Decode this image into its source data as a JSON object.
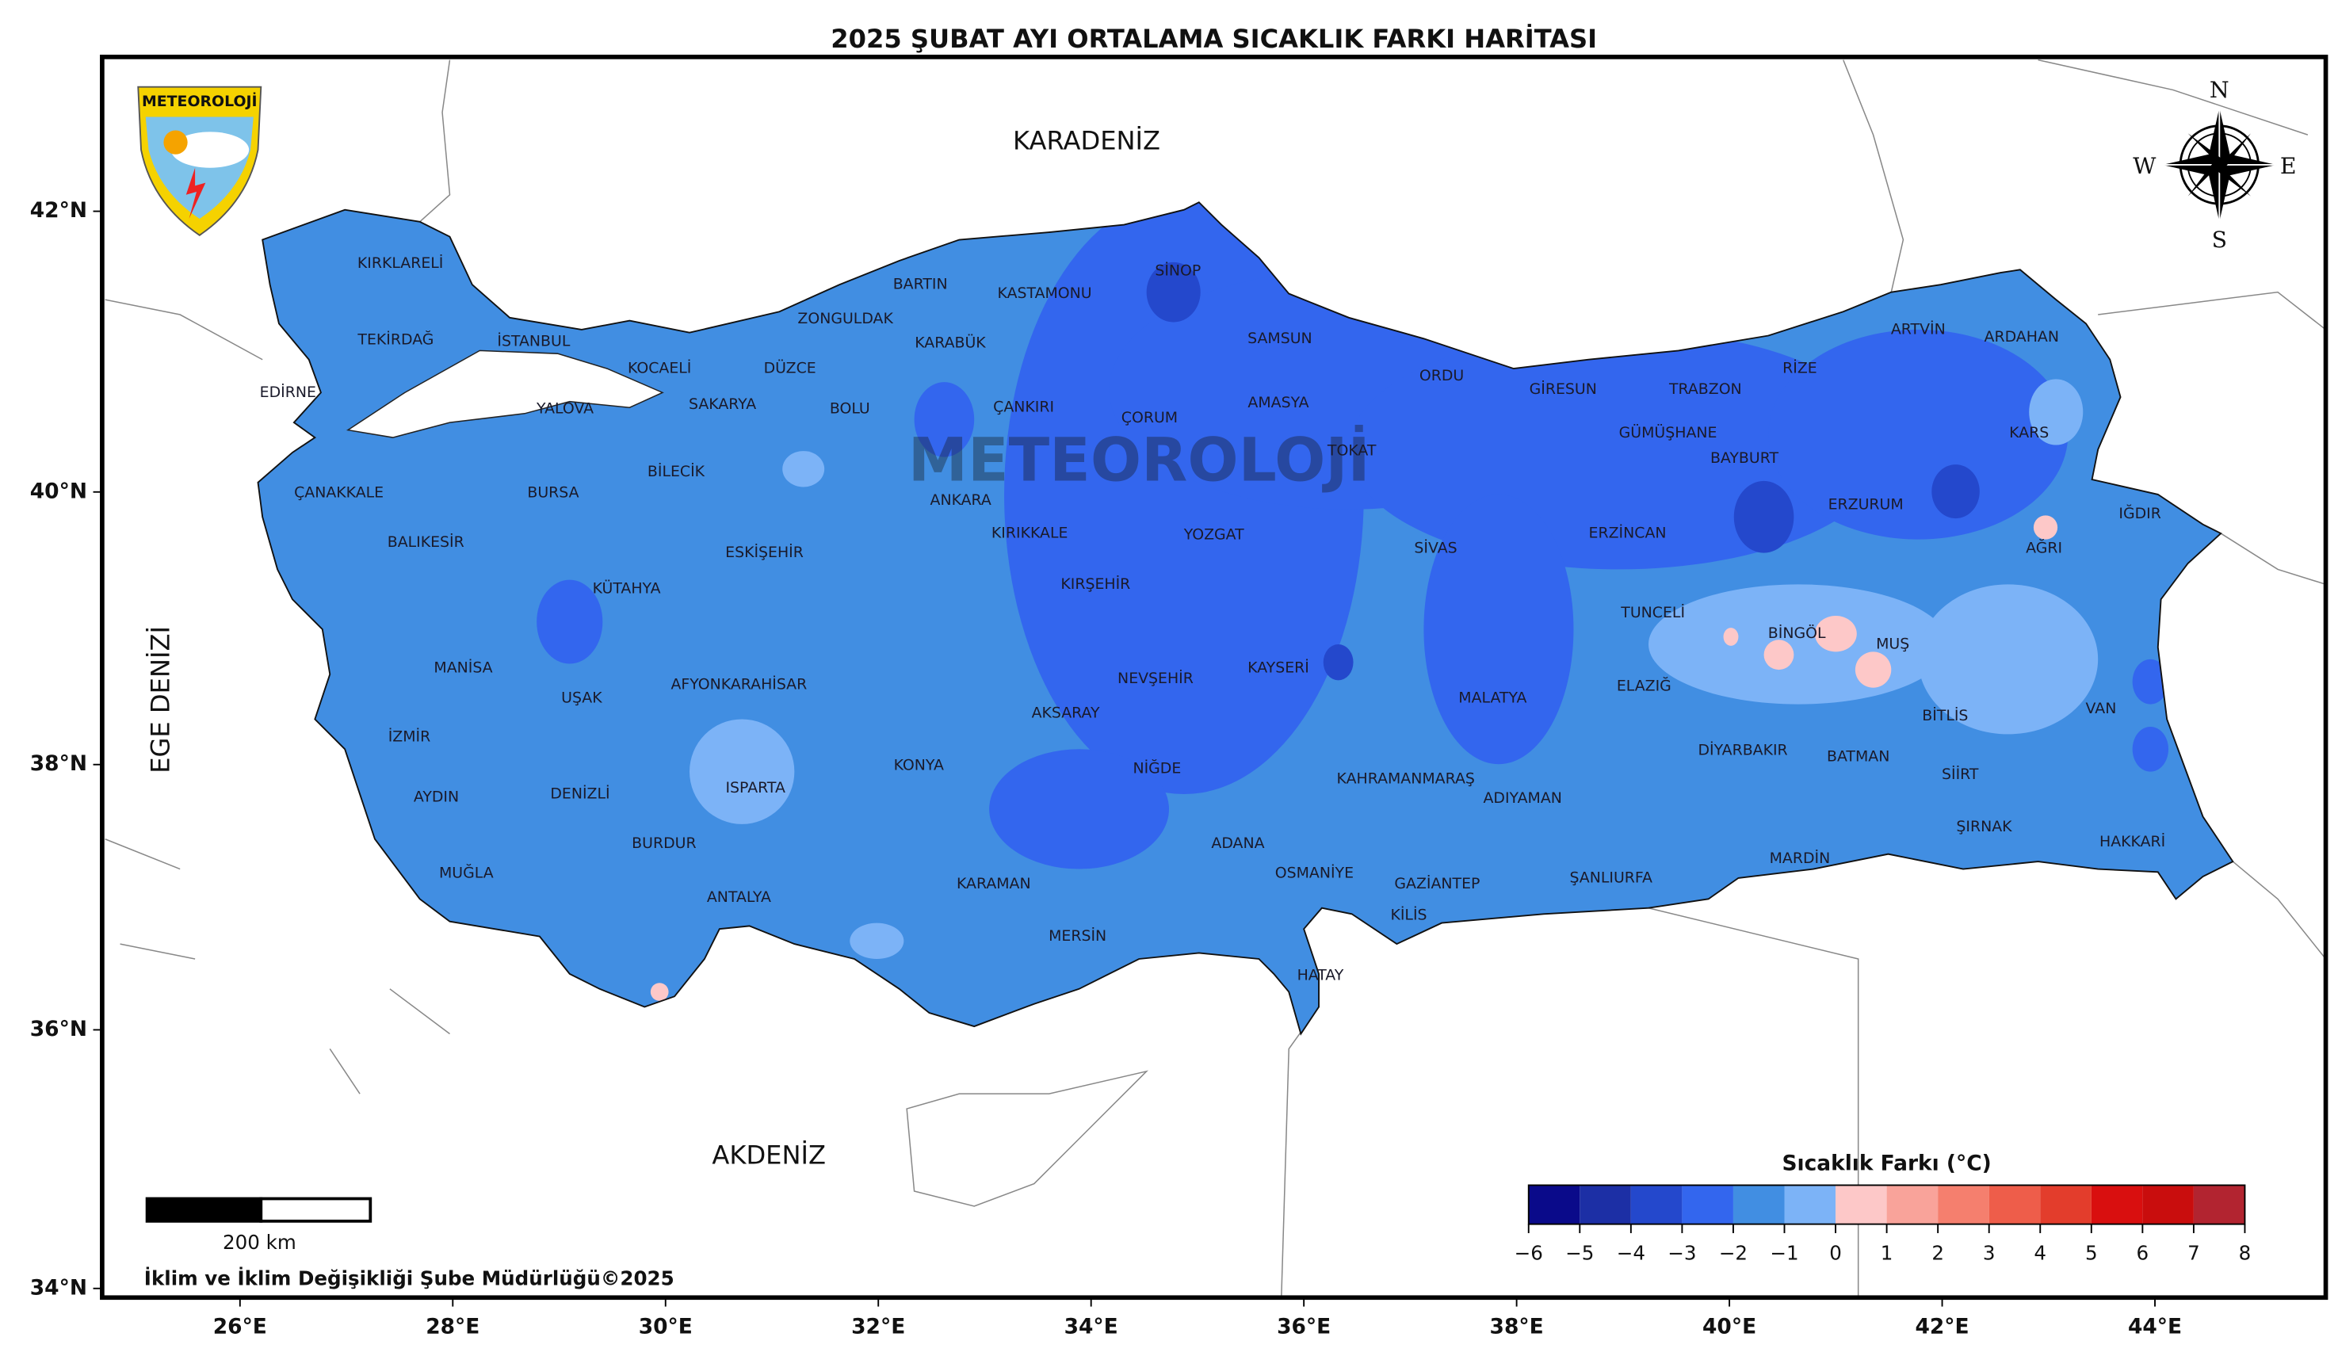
{
  "header": {
    "title": "2025 ŞUBAT AYI ORTALAMA SICAKLIK FARKI HARİTASI"
  },
  "logo": {
    "text": "METEOROLOJİ"
  },
  "compass": {
    "n": "N",
    "e": "E",
    "s": "S",
    "w": "W"
  },
  "map": {
    "seas": [
      "KARADENİZ",
      "AKDENİZ",
      "EGE DENİZİ"
    ],
    "provinces": [
      "KIRKLARELİ",
      "TEKİRDAĞ",
      "EDİRNE",
      "İSTANBUL",
      "KOCAELİ",
      "YALOVA",
      "SAKARYA",
      "DÜZCE",
      "ZONGULDAK",
      "BARTIN",
      "KARABÜK",
      "KASTAMONU",
      "SİNOP",
      "BOLU",
      "ÇANKIRI",
      "ÇORUM",
      "SAMSUN",
      "AMASYA",
      "TOKAT",
      "ORDU",
      "GİRESUN",
      "TRABZON",
      "RİZE",
      "ARTVİN",
      "ARDAHAN",
      "KARS",
      "GÜMÜŞHANE",
      "BAYBURT",
      "ERZURUM",
      "IĞDIR",
      "AĞRI",
      "ERZİNCAN",
      "SİVAS",
      "YOZGAT",
      "KIRIKKALE",
      "ANKARA",
      "KIRŞEHİR",
      "NEVŞEHİR",
      "KAYSERİ",
      "AKSARAY",
      "NİĞDE",
      "MALATYA",
      "TUNCELİ",
      "BİNGÖL",
      "MUŞ",
      "ELAZIĞ",
      "BİTLİS",
      "VAN",
      "DİYARBAKIR",
      "BATMAN",
      "SİİRT",
      "ŞIRNAK",
      "HAKKARİ",
      "MARDİN",
      "ŞANLIURFA",
      "ADIYAMAN",
      "KAHRAMANMARAŞ",
      "GAZİANTEP",
      "KİLİS",
      "OSMANİYE",
      "ADANA",
      "HATAY",
      "MERSİN",
      "KARAMAN",
      "KONYA",
      "ANTALYA",
      "ISPARTA",
      "BURDUR",
      "AFYONKARAHİSAR",
      "ESKİŞEHİR",
      "BİLECİK",
      "BURSA",
      "KÜTAHYA",
      "BALIKESİR",
      "ÇANAKKALE",
      "MANİSA",
      "UŞAK",
      "İZMİR",
      "AYDIN",
      "DENİZLİ",
      "MUĞLA"
    ],
    "lon_ticks": [
      {
        "value": 26,
        "label": "26°E"
      },
      {
        "value": 28,
        "label": "28°E"
      },
      {
        "value": 30,
        "label": "30°E"
      },
      {
        "value": 32,
        "label": "32°E"
      },
      {
        "value": 34,
        "label": "34°E"
      },
      {
        "value": 36,
        "label": "36°E"
      },
      {
        "value": 38,
        "label": "38°E"
      },
      {
        "value": 40,
        "label": "40°E"
      },
      {
        "value": 42,
        "label": "42°E"
      },
      {
        "value": 44,
        "label": "44°E"
      }
    ],
    "lat_ticks": [
      {
        "value": 34,
        "label": "34°N"
      },
      {
        "value": 36,
        "label": "36°N"
      },
      {
        "value": 38,
        "label": "38°N"
      },
      {
        "value": 40,
        "label": "40°N"
      },
      {
        "value": 42,
        "label": "42°N"
      }
    ]
  },
  "colorbar": {
    "title": "Sıcaklık Farkı (°C)",
    "ticks": [
      {
        "value": -6,
        "label": "−6"
      },
      {
        "value": -5,
        "label": "−5"
      },
      {
        "value": -4,
        "label": "−4"
      },
      {
        "value": -3,
        "label": "−3"
      },
      {
        "value": -2,
        "label": "−2"
      },
      {
        "value": -1,
        "label": "−1"
      },
      0,
      1,
      2,
      3,
      4,
      5,
      6,
      7,
      8
    ],
    "colors": [
      "#0a0a8a",
      "#1c2fa5",
      "#2448cc",
      "#3366ee",
      "#418ee2",
      "#7cb3f7",
      "#fdc8c8",
      "#f9a39a",
      "#f57f6e",
      "#ee5d4a",
      "#e33d2c",
      "#d90f0f",
      "#c90d0d",
      "#b22430"
    ]
  },
  "scale_bar": {
    "label": "200 km"
  },
  "footer": "İklim ve İklim Değişikliği Şube Müdürlüğü©2025"
}
